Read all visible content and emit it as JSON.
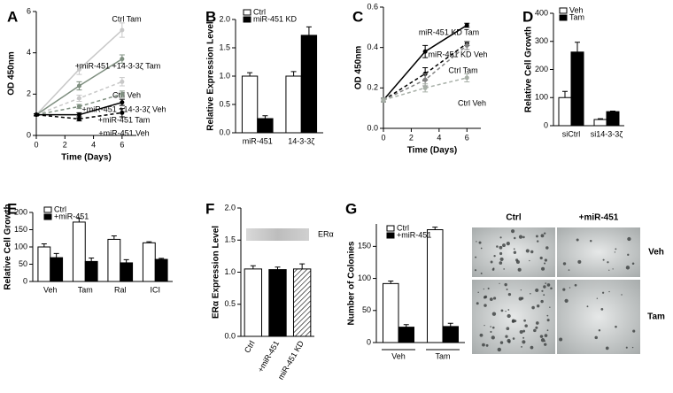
{
  "chart_data": [
    {
      "type": "line",
      "panel_label": "A",
      "xlabel": "Time (Days)",
      "ylabel": "OD 450nm",
      "x": [
        0,
        3,
        6
      ],
      "xlim": [
        0,
        7
      ],
      "xticks": [
        0,
        2,
        4,
        6
      ],
      "ylim": [
        0,
        6
      ],
      "yticks": [
        0,
        2,
        4,
        6
      ],
      "series": [
        {
          "name": "Ctrl Tam",
          "color": "#c8c8c8",
          "dashed": false,
          "values": [
            1,
            3.2,
            5.1
          ],
          "errors": [
            0.05,
            0.25,
            0.35
          ]
        },
        {
          "name": "+miR-451 +14-3-3ζ Tam",
          "color": "#7f8f80",
          "dashed": false,
          "values": [
            1,
            2.4,
            3.7
          ],
          "errors": [
            0.05,
            0.2,
            0.2
          ]
        },
        {
          "name": "Ctrl Veh",
          "color": "#c8c8c8",
          "dashed": true,
          "values": [
            1,
            1.8,
            2.6
          ],
          "errors": [
            0.05,
            0.15,
            0.2
          ]
        },
        {
          "name": "+miR-451 +14-3-3ζ Veh",
          "color": "#7f8f80",
          "dashed": true,
          "values": [
            1,
            1.4,
            2.0
          ],
          "errors": [
            0.05,
            0.1,
            0.15
          ]
        },
        {
          "name": "+miR-451 Tam",
          "color": "#000000",
          "dashed": false,
          "values": [
            1,
            1.0,
            1.6
          ],
          "errors": [
            0.05,
            0.1,
            0.15
          ]
        },
        {
          "name": "+miR-451 Veh",
          "color": "#000000",
          "dashed": true,
          "values": [
            1,
            0.8,
            1.1
          ],
          "errors": [
            0.05,
            0.1,
            0.2
          ]
        }
      ]
    },
    {
      "type": "bar",
      "panel_label": "B",
      "ylabel": "Relative Expression Level",
      "categories": [
        "miR-451",
        "14-3-3ζ"
      ],
      "ylim": [
        0,
        2
      ],
      "yticks": [
        {
          "value": 0,
          "label": "0.0"
        },
        {
          "value": 0.5,
          "label": "0.5"
        },
        {
          "value": 1,
          "label": "1.0"
        },
        {
          "value": 1.5,
          "label": "1.5"
        },
        {
          "value": 2,
          "label": "2.0"
        }
      ],
      "series": [
        {
          "name": "Ctrl",
          "color": "#ffffff",
          "values": [
            1.0,
            1.0
          ],
          "errors": [
            0.06,
            0.08
          ]
        },
        {
          "name": "miR-451 KD",
          "color": "#000000",
          "values": [
            0.25,
            1.72
          ],
          "errors": [
            0.05,
            0.15
          ]
        }
      ]
    },
    {
      "type": "line",
      "panel_label": "C",
      "xlabel": "Time (Days)",
      "ylabel": "OD 450nm",
      "x": [
        0,
        3,
        6
      ],
      "xlim": [
        0,
        7
      ],
      "xticks": [
        0,
        2,
        4,
        6
      ],
      "ylim": [
        0,
        0.6
      ],
      "yticks": [
        {
          "value": 0,
          "label": "0.0"
        },
        {
          "value": 0.2,
          "label": "0.2"
        },
        {
          "value": 0.4,
          "label": "0.4"
        },
        {
          "value": 0.6,
          "label": "0.6"
        }
      ],
      "series": [
        {
          "name": "miR-451 KD Tam",
          "color": "#000000",
          "dashed": false,
          "values": [
            0.14,
            0.38,
            0.51
          ],
          "errors": [
            0.01,
            0.03,
            0.01
          ]
        },
        {
          "name": "miR-451 KD Veh",
          "color": "#000000",
          "dashed": true,
          "values": [
            0.14,
            0.27,
            0.42
          ],
          "errors": [
            0.01,
            0.03,
            0.01
          ]
        },
        {
          "name": "Ctrl Tam",
          "color": "#808080",
          "dashed": true,
          "values": [
            0.14,
            0.24,
            0.41
          ],
          "errors": [
            0.01,
            0.03,
            0.02
          ]
        },
        {
          "name": "Ctrl Veh",
          "color": "#a8b0a8",
          "dashed": true,
          "values": [
            0.14,
            0.2,
            0.25
          ],
          "errors": [
            0.01,
            0.02,
            0.02
          ]
        }
      ]
    },
    {
      "type": "bar",
      "panel_label": "D",
      "ylabel": "Relative Cell Growth",
      "categories": [
        "siCtrl",
        "si14-3-3ζ"
      ],
      "ylim": [
        0,
        400
      ],
      "yticks": [
        0,
        100,
        200,
        300,
        400
      ],
      "series": [
        {
          "name": "Veh",
          "color": "#ffffff",
          "values": [
            100,
            22
          ],
          "errors": [
            22,
            3
          ]
        },
        {
          "name": "Tam",
          "color": "#000000",
          "values": [
            262,
            50
          ],
          "errors": [
            35,
            2
          ]
        }
      ]
    },
    {
      "type": "bar",
      "panel_label": "E",
      "ylabel": "Relative Cell Growth",
      "categories": [
        "Veh",
        "Tam",
        "Ral",
        "ICI"
      ],
      "ylim": [
        0,
        200
      ],
      "yticks": [
        0,
        50,
        100,
        150,
        200
      ],
      "series": [
        {
          "name": "Ctrl",
          "color": "#ffffff",
          "values": [
            100,
            172,
            122,
            112
          ],
          "errors": [
            9,
            11,
            10,
            3
          ]
        },
        {
          "name": "+miR-451",
          "color": "#000000",
          "values": [
            69,
            58,
            54,
            64
          ],
          "errors": [
            12,
            10,
            9,
            3
          ]
        }
      ]
    },
    {
      "type": "bar",
      "panel_label": "F",
      "ylabel": "ERα Expression Level",
      "blot_label": "ERα",
      "rotate_labels": true,
      "categories": [
        "Ctrl",
        "+miR-451",
        "miR-451 KD"
      ],
      "ylim": [
        0,
        2
      ],
      "yticks": [
        {
          "value": 0,
          "label": "0.0"
        },
        {
          "value": 0.5,
          "label": "0.5"
        },
        {
          "value": 1,
          "label": "1.0"
        },
        {
          "value": 1.5,
          "label": "1.5"
        },
        {
          "value": 2,
          "label": "2.0"
        }
      ],
      "values": [
        1.05,
        1.04,
        1.05
      ],
      "errors": [
        0.05,
        0.04,
        0.08
      ],
      "colors": [
        "#ffffff",
        "#000000",
        "#ffffff"
      ],
      "hatched": [
        false,
        false,
        true
      ]
    },
    {
      "type": "bar",
      "panel_label": "G",
      "ylabel": "Number of Colonies",
      "group_brackets": true,
      "categories": [
        "Veh",
        "Tam"
      ],
      "ylim": [
        0,
        185
      ],
      "yticks": [
        0,
        50,
        100,
        150
      ],
      "series": [
        {
          "name": "Ctrl",
          "color": "#ffffff",
          "values": [
            92,
            176
          ],
          "errors": [
            4,
            4
          ]
        },
        {
          "name": "+miR-451",
          "color": "#000000",
          "values": [
            24,
            25
          ],
          "errors": [
            4,
            5
          ]
        }
      ]
    }
  ],
  "micrograph": {
    "columns": [
      "Ctrl",
      "+miR-451"
    ],
    "rows": [
      "Veh",
      "Tam"
    ]
  }
}
